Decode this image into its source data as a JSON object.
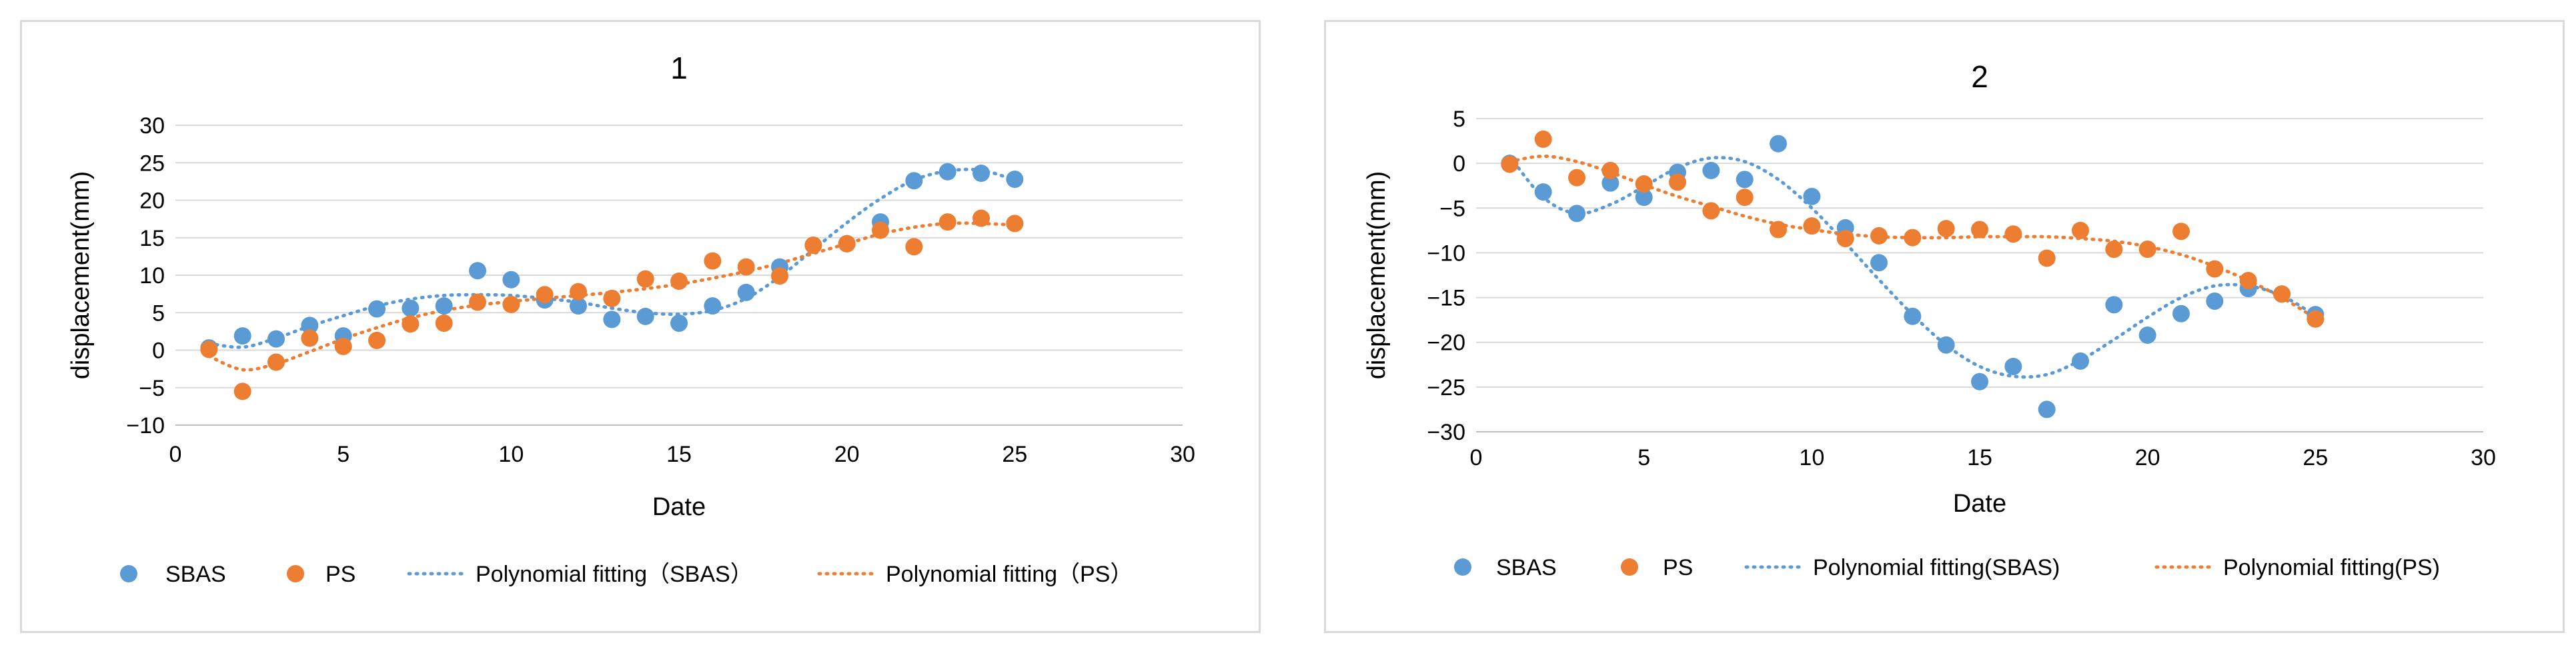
{
  "colors": {
    "sbas": "#5b9bd5",
    "ps": "#ed7d31",
    "grid": "#d9d9d9",
    "axis": "#bfbfbf"
  },
  "chart_data": [
    {
      "type": "scatter",
      "title": "1",
      "xlabel": "Date",
      "ylabel": "displacement(mm)",
      "xlim": [
        0,
        30
      ],
      "ylim": [
        -10,
        30
      ],
      "xticks": [
        "0",
        "5",
        "10",
        "15",
        "20",
        "25",
        "30"
      ],
      "yticks": [
        "30",
        "25",
        "20",
        "15",
        "10",
        "5",
        "0",
        "−5",
        "−10"
      ],
      "grid": true,
      "legend_position": "bottom",
      "legend": [
        "SBAS",
        "PS",
        "Polynomial fitting（SBAS）",
        "Polynomial fitting（PS）"
      ],
      "series": [
        {
          "name": "SBAS",
          "x": [
            1,
            2,
            3,
            4,
            5,
            6,
            7,
            8,
            9,
            10,
            11,
            12,
            13,
            14,
            15,
            16,
            17,
            18,
            19,
            20,
            21,
            22,
            23,
            24,
            25
          ],
          "values": [
            0.3,
            1.9,
            1.5,
            3.3,
            1.9,
            5.5,
            5.6,
            5.9,
            10.6,
            9.4,
            6.7,
            5.9,
            4.1,
            4.5,
            3.6,
            5.9,
            7.7,
            11.1,
            14.0,
            14.2,
            17.1,
            22.6,
            23.8,
            23.6,
            22.8
          ]
        },
        {
          "name": "PS",
          "x": [
            1,
            2,
            3,
            4,
            5,
            6,
            7,
            8,
            9,
            10,
            11,
            12,
            13,
            14,
            15,
            16,
            17,
            18,
            19,
            20,
            21,
            22,
            23,
            24,
            25
          ],
          "values": [
            0.1,
            -5.5,
            -1.6,
            1.6,
            0.5,
            1.3,
            3.5,
            3.6,
            6.4,
            6.1,
            7.4,
            7.8,
            6.9,
            9.5,
            9.2,
            11.9,
            11.1,
            9.9,
            14.0,
            14.2,
            16.0,
            13.8,
            17.1,
            17.6,
            16.9
          ]
        },
        {
          "name": "Polynomial fitting（SBAS）",
          "x": [
            1,
            2,
            3,
            4,
            5,
            6,
            7,
            8,
            9,
            10,
            11,
            12,
            13,
            14,
            15,
            16,
            17,
            18,
            19,
            20,
            21,
            22,
            23,
            24,
            25
          ],
          "values": [
            0.9,
            0.4,
            1.6,
            3.2,
            4.6,
            5.9,
            6.8,
            7.3,
            7.4,
            7.3,
            6.9,
            6.4,
            5.6,
            5.0,
            4.8,
            5.3,
            6.9,
            9.8,
            13.4,
            17.0,
            20.2,
            22.7,
            23.9,
            24.0,
            22.7
          ]
        },
        {
          "name": "Polynomial fitting（PS）",
          "x": [
            1,
            2,
            3,
            4,
            5,
            6,
            7,
            8,
            9,
            10,
            11,
            12,
            13,
            14,
            15,
            16,
            17,
            18,
            19,
            20,
            21,
            22,
            23,
            24,
            25
          ],
          "values": [
            -0.8,
            -2.6,
            -1.8,
            -0.2,
            1.5,
            3.0,
            4.3,
            5.3,
            6.0,
            6.5,
            6.9,
            7.3,
            7.7,
            8.2,
            8.8,
            9.6,
            10.5,
            11.6,
            12.9,
            14.2,
            15.5,
            16.4,
            16.9,
            16.9,
            16.7
          ]
        }
      ]
    },
    {
      "type": "scatter",
      "title": "2",
      "xlabel": "Date",
      "ylabel": "displacement(mm)",
      "xlim": [
        0,
        30
      ],
      "ylim": [
        -30,
        5
      ],
      "xticks": [
        "0",
        "5",
        "10",
        "15",
        "20",
        "25",
        "30"
      ],
      "yticks": [
        "5",
        "0",
        "−5",
        "−10",
        "−15",
        "−20",
        "−25",
        "−30"
      ],
      "grid": true,
      "legend_position": "bottom",
      "legend": [
        "SBAS",
        "PS",
        "Polynomial fitting(SBAS)",
        "Polynomial fitting(PS)"
      ],
      "series": [
        {
          "name": "SBAS",
          "x": [
            1,
            2,
            3,
            4,
            5,
            6,
            7,
            8,
            9,
            10,
            11,
            12,
            13,
            14,
            15,
            16,
            17,
            18,
            19,
            20,
            21,
            22,
            23,
            24,
            25
          ],
          "values": [
            0.0,
            -3.2,
            -5.6,
            -2.2,
            -3.8,
            -1.0,
            -0.8,
            -1.8,
            2.2,
            -3.7,
            -7.2,
            -11.1,
            -17.1,
            -20.3,
            -24.4,
            -22.7,
            -27.5,
            -22.1,
            -15.8,
            -19.2,
            -16.8,
            -15.4,
            -14.0,
            -14.6,
            -16.9
          ]
        },
        {
          "name": "PS",
          "x": [
            1,
            2,
            3,
            4,
            5,
            6,
            7,
            8,
            9,
            10,
            11,
            12,
            13,
            14,
            15,
            16,
            17,
            18,
            19,
            20,
            21,
            22,
            23,
            24,
            25
          ],
          "values": [
            -0.1,
            2.7,
            -1.6,
            -0.8,
            -2.3,
            -2.1,
            -5.3,
            -3.8,
            -7.4,
            -7.0,
            -8.4,
            -8.1,
            -8.3,
            -7.3,
            -7.4,
            -7.9,
            -10.6,
            -7.5,
            -9.6,
            -9.6,
            -7.6,
            -11.8,
            -13.1,
            -14.6,
            -17.4
          ]
        },
        {
          "name": "Polynomial fitting(SBAS)",
          "x": [
            1,
            2,
            3,
            4,
            5,
            6,
            7,
            8,
            9,
            10,
            11,
            12,
            13,
            14,
            15,
            16,
            17,
            18,
            19,
            20,
            21,
            22,
            23,
            24,
            25
          ],
          "values": [
            0.8,
            -3.8,
            -5.6,
            -4.6,
            -2.6,
            -0.5,
            0.6,
            0.2,
            -1.8,
            -5.0,
            -8.9,
            -13.0,
            -16.9,
            -20.3,
            -22.7,
            -23.8,
            -23.6,
            -22.0,
            -19.7,
            -17.2,
            -15.0,
            -13.7,
            -13.7,
            -14.8,
            -17.0
          ]
        },
        {
          "name": "Polynomial fitting(PS)",
          "x": [
            1,
            2,
            3,
            4,
            5,
            6,
            7,
            8,
            9,
            10,
            11,
            12,
            13,
            14,
            15,
            16,
            17,
            18,
            19,
            20,
            21,
            22,
            23,
            24,
            25
          ],
          "values": [
            0.2,
            0.8,
            0.2,
            -1.0,
            -2.4,
            -3.7,
            -4.8,
            -5.9,
            -6.8,
            -7.4,
            -7.9,
            -8.2,
            -8.3,
            -8.3,
            -8.2,
            -8.2,
            -8.2,
            -8.4,
            -8.7,
            -9.3,
            -10.2,
            -11.5,
            -13.1,
            -15.0,
            -17.3
          ]
        }
      ]
    }
  ]
}
